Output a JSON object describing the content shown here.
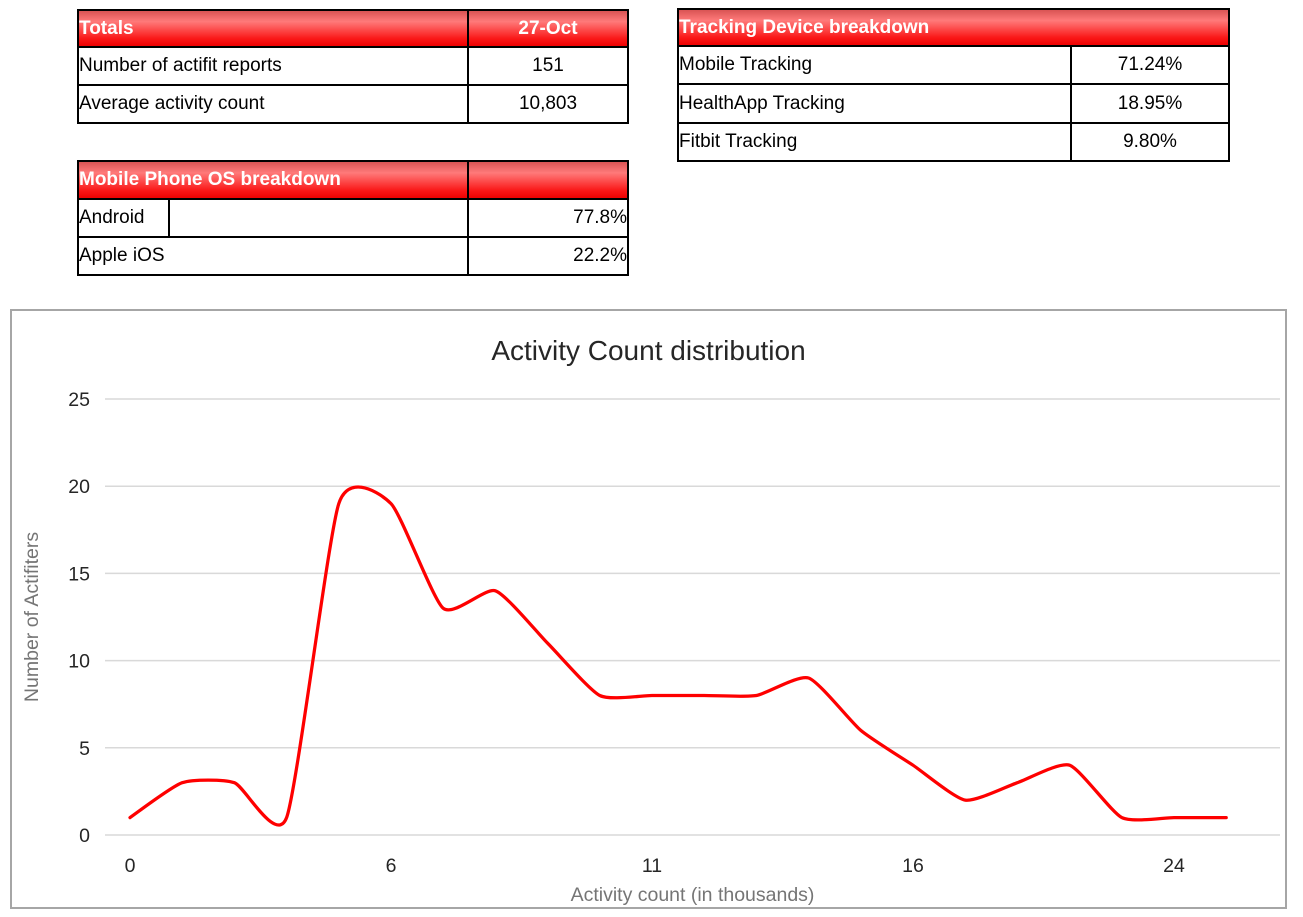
{
  "tables": {
    "totals": {
      "header": {
        "title": "Totals",
        "date": "27-Oct"
      },
      "rows": [
        {
          "label": "Number of actifit reports",
          "value": "151"
        },
        {
          "label": "Average activity count",
          "value": "10,803"
        }
      ]
    },
    "mobile_os": {
      "header": {
        "title": "Mobile Phone OS breakdown",
        "spacer": ""
      },
      "rows": [
        {
          "label": "Android",
          "value": "77.8%"
        },
        {
          "label": "Apple iOS",
          "value": "22.2%"
        }
      ]
    },
    "tracking": {
      "header": {
        "title": "Tracking Device breakdown"
      },
      "rows": [
        {
          "label": "Mobile Tracking",
          "value": "71.24%"
        },
        {
          "label": "HealthApp Tracking",
          "value": "18.95%"
        },
        {
          "label": "Fitbit Tracking",
          "value": "9.80%"
        }
      ]
    }
  },
  "colors": {
    "header_red_top": "#ff7a7a",
    "header_red": "#ee0202",
    "line_red": "#fe0000",
    "table_border": "#000000",
    "chart_border": "#a6a6a6",
    "grid_gray": "#d9d9d9",
    "tick_text": "#262626",
    "axis_title_gray": "#757575"
  },
  "chart_data": {
    "type": "line",
    "smooth": true,
    "title": "Activity Count distribution",
    "xlabel": "Activity count (in thousands)",
    "ylabel": "Number of Actifiters",
    "values": [
      1,
      3,
      3,
      1,
      19,
      19,
      13,
      14,
      11,
      8,
      8,
      8,
      8,
      9,
      6,
      4,
      2,
      3,
      4,
      1,
      1,
      1
    ],
    "x_tick_labels": [
      {
        "index": 0,
        "label": "0"
      },
      {
        "index": 5,
        "label": "6"
      },
      {
        "index": 10,
        "label": "11"
      },
      {
        "index": 15,
        "label": "16"
      },
      {
        "index": 20,
        "label": "24"
      }
    ],
    "y_ticks": [
      0,
      5,
      10,
      15,
      20,
      25
    ],
    "ylim": [
      0,
      25
    ],
    "grid": true,
    "legend": "none",
    "line_color": "#fe0000"
  }
}
